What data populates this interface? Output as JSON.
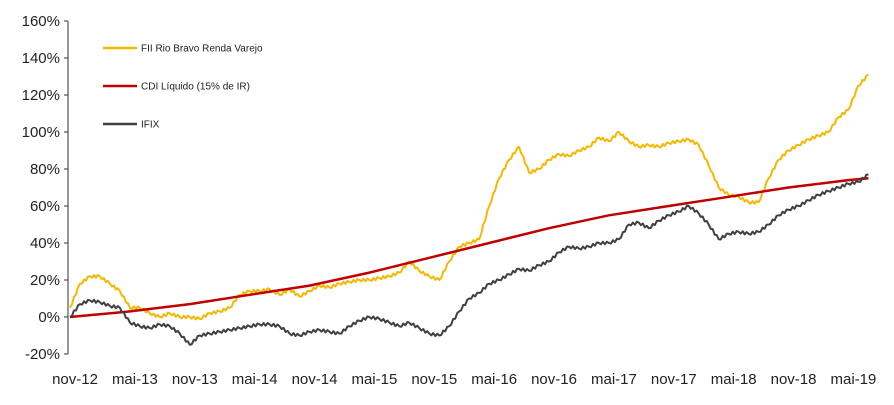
{
  "chart_data": {
    "type": "line",
    "title": "",
    "xlabel": "",
    "ylabel": "",
    "ylim": [
      -20,
      160
    ],
    "yticks": [
      "-20%",
      "0%",
      "20%",
      "40%",
      "60%",
      "80%",
      "100%",
      "120%",
      "140%",
      "160%"
    ],
    "ytick_values": [
      -20,
      0,
      20,
      40,
      60,
      80,
      100,
      120,
      140,
      160
    ],
    "xticks": [
      "nov-12",
      "mai-13",
      "nov-13",
      "mai-14",
      "nov-14",
      "mai-15",
      "nov-15",
      "mai-16",
      "nov-16",
      "mai-17",
      "nov-17",
      "mai-18",
      "nov-18",
      "mai-19"
    ],
    "x_unit": "months since nov-12",
    "legend_position": "top-left",
    "grid": false,
    "series": [
      {
        "name": "FII Rio Bravo Renda Varejo",
        "color": "#F5B800",
        "values": [
          5,
          18,
          22,
          22,
          18,
          14,
          5,
          5,
          2,
          0,
          2,
          0,
          0,
          -1,
          2,
          3,
          5,
          12,
          14,
          14,
          15,
          12,
          15,
          11,
          14,
          17,
          16,
          18,
          19,
          20,
          20,
          21,
          22,
          24,
          30,
          25,
          22,
          20,
          30,
          38,
          40,
          42,
          60,
          75,
          85,
          92,
          78,
          80,
          85,
          88,
          87,
          90,
          92,
          97,
          95,
          100,
          95,
          92,
          93,
          92,
          94,
          95,
          96,
          93,
          82,
          70,
          66,
          65,
          62,
          62,
          75,
          85,
          90,
          93,
          96,
          98,
          100,
          108,
          112,
          125,
          131
        ]
      },
      {
        "name": "CDI Líquido (15% de IR)",
        "color": "#C00000",
        "x": [
          0,
          6,
          12,
          18,
          24,
          30,
          36,
          42,
          48,
          54,
          60,
          66,
          72,
          78,
          80
        ],
        "values": [
          0,
          3,
          7,
          12,
          17,
          24,
          32,
          40,
          48,
          55,
          60,
          65,
          70,
          74,
          75
        ]
      },
      {
        "name": "IFIX",
        "color": "#404040",
        "values": [
          0,
          7,
          9,
          8,
          6,
          5,
          -3,
          -5,
          -6,
          -4,
          -5,
          -9,
          -15,
          -10,
          -9,
          -8,
          -7,
          -6,
          -5,
          -4,
          -4,
          -5,
          -9,
          -10,
          -8,
          -7,
          -8,
          -9,
          -5,
          -2,
          0,
          -1,
          -3,
          -5,
          -3,
          -6,
          -9,
          -10,
          -5,
          3,
          10,
          13,
          18,
          20,
          23,
          26,
          25,
          28,
          30,
          35,
          38,
          37,
          38,
          40,
          40,
          42,
          50,
          51,
          48,
          52,
          55,
          57,
          60,
          56,
          50,
          42,
          45,
          46,
          45,
          46,
          50,
          55,
          58,
          60,
          63,
          66,
          68,
          70,
          72,
          73,
          77
        ]
      }
    ]
  }
}
